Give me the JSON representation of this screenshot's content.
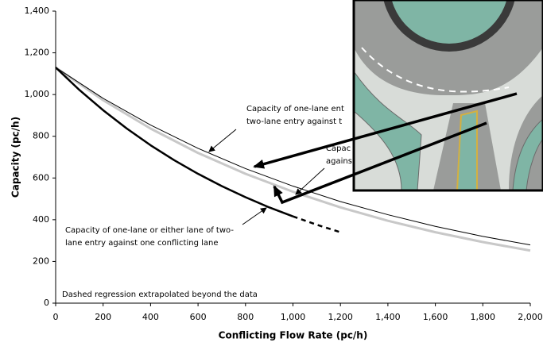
{
  "chart_data": {
    "type": "line",
    "xlabel": "Conflicting Flow Rate (pc/h)",
    "ylabel": "Capacity (pc/h)",
    "xlim": [
      0,
      2000
    ],
    "ylim": [
      0,
      1400
    ],
    "xticks": [
      0,
      200,
      400,
      600,
      800,
      {
        "value": 1000,
        "label": "1,000"
      },
      {
        "value": 1200,
        "label": "1,200"
      },
      {
        "value": 1400,
        "label": "1,400"
      },
      {
        "value": 1600,
        "label": "1,600"
      },
      {
        "value": 1800,
        "label": "1,800"
      },
      {
        "value": 2000,
        "label": "2,000"
      }
    ],
    "yticks": [
      0,
      200,
      400,
      600,
      800,
      {
        "value": 1000,
        "label": "1,000"
      },
      {
        "value": 1200,
        "label": "1,200"
      },
      {
        "value": 1400,
        "label": "1,400"
      }
    ],
    "grid": false,
    "series": [
      {
        "color": "#c8c8c8",
        "width": 3,
        "dashed": false,
        "x": [
          0,
          200,
          400,
          600,
          800,
          1000,
          1200,
          1400,
          1600,
          1800,
          2000
        ],
        "values": [
          1130,
          973,
          837,
          720,
          620,
          534,
          459,
          395,
          340,
          293,
          252
        ]
      },
      {
        "color": "#000000",
        "width": 1,
        "dashed": false,
        "x": [
          0,
          200,
          400,
          600,
          800,
          1000,
          1200,
          1400,
          1600,
          1800,
          2000
        ],
        "values": [
          1130,
          982,
          854,
          742,
          645,
          561,
          487,
          424,
          368,
          320,
          279
        ]
      },
      {
        "color": "#000000",
        "width": 2.5,
        "dashed": false,
        "x": [
          0,
          100,
          200,
          300,
          400,
          500,
          600,
          700,
          800,
          900,
          1000
        ],
        "values": [
          1130,
          1022,
          925,
          837,
          757,
          685,
          620,
          561,
          508,
          459,
          416
        ]
      },
      {
        "color": "#000000",
        "width": 2.5,
        "dashed": true,
        "x": [
          1000,
          1100,
          1200
        ],
        "values": [
          416,
          376,
          340
        ]
      }
    ],
    "annotations": [
      "Capacity of one-lane ent",
      "two-lane entry against t",
      "Capac",
      "agains",
      "Capacity of one-lane or either lane of two-",
      "lane entry against one conflicting lane",
      "Dashed regression extrapolated beyond the data"
    ]
  }
}
